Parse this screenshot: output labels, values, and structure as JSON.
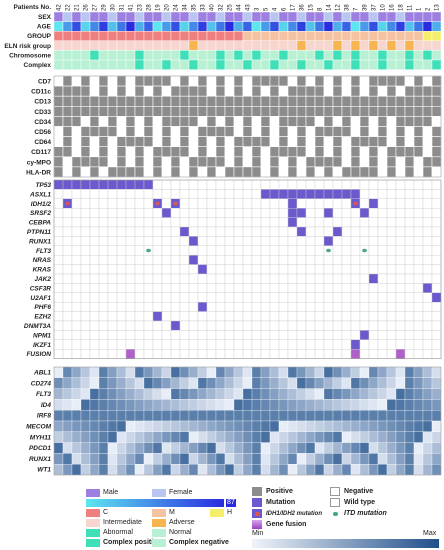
{
  "header_label": "Patients No.",
  "patient_ids": [
    "42",
    "22",
    "21",
    "26",
    "27",
    "29",
    "30",
    "31",
    "41",
    "23",
    "28",
    "19",
    "20",
    "24",
    "34",
    "35",
    "33",
    "40",
    "32",
    "25",
    "44",
    "43",
    "3",
    "5",
    "4",
    "6",
    "17",
    "36",
    "15",
    "8",
    "14",
    "12",
    "38",
    "7",
    "39",
    "37",
    "10",
    "16",
    "18",
    "11",
    "1",
    "2",
    "13"
  ],
  "rows": {
    "annotation": [
      "SEX",
      "AGE",
      "GROUP",
      "ELN risk group",
      "Chromosome",
      "Complex"
    ],
    "immuno": [
      "CD7",
      "CD11c",
      "CD13",
      "CD33",
      "CD34",
      "CD56",
      "CD64",
      "CD117",
      "cy-MPO",
      "HLA-DR"
    ],
    "genes": [
      "TP53",
      "ASXL1",
      "IDH1/2",
      "SRSF2",
      "CEBPA",
      "PTPN11",
      "RUNX1",
      "FLT3",
      "NRAS",
      "KRAS",
      "JAK2",
      "CSF3R",
      "U2AF1",
      "PHF6",
      "EZH2",
      "DNMT3A",
      "NPM1",
      "IKZF1",
      "FUSION"
    ],
    "expression": [
      "ABL1",
      "CD274",
      "FLT3",
      "ID4",
      "IRF8",
      "MECOM",
      "MYH11",
      "PDCD1",
      "RUNX1",
      "WT1"
    ]
  },
  "legend": {
    "sex": {
      "male": "Male",
      "female": "Female"
    },
    "age_gradient": {
      "min": "",
      "max": "87"
    },
    "group": {
      "c": "C",
      "m": "M",
      "h": "H"
    },
    "eln": {
      "intermediate": "Intermediate",
      "adverse": "Adverse"
    },
    "chromosome": {
      "abnormal": "Abnormal",
      "normal": "Normal"
    },
    "complex": {
      "positive": "Complex positive",
      "negative": "Complex negative"
    },
    "immuno": {
      "positive": "Positive",
      "negative": "Negative"
    },
    "mutation": {
      "mutation": "Mutation",
      "wild": "Wild type",
      "idh": "IDH1/IDH2 mutation",
      "itd": "ITD mutation",
      "fusion": "Gene fusion"
    },
    "expr": {
      "min": "Min",
      "max": "Max"
    }
  },
  "colors": {
    "male": "#9c7fe0",
    "female": "#b9c6f2",
    "group_c": "#f08080",
    "group_m": "#f6c3a2",
    "group_h": "#f5ee6a",
    "intermediate": "#f7d6cf",
    "adverse": "#f6b54e",
    "abnormal": "#3fe0b8",
    "normal": "#b8f0d4",
    "complex_pos": "#3fe0b8",
    "complex_neg": "#b8f0d4",
    "positive": "#8c8c8c",
    "negative": "#ffffff",
    "mutation": "#6a5acd",
    "idh_dot": "#e0584b",
    "itd_dot": "#4aa58a",
    "fusion": "#b060c8",
    "expr_min": "#e8eef8",
    "expr_max": "#1f4f8a"
  }
}
